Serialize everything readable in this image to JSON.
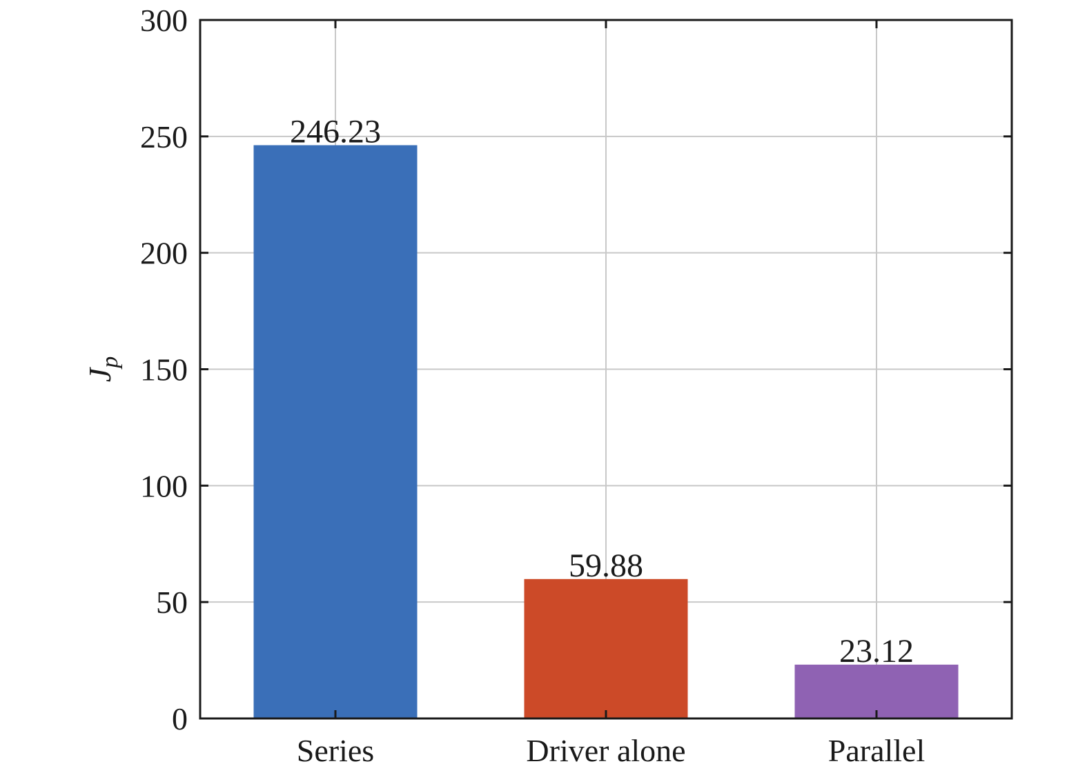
{
  "chart_data": {
    "type": "bar",
    "categories": [
      "Series",
      "Driver alone",
      "Parallel"
    ],
    "values": [
      246.23,
      59.88,
      23.12
    ],
    "data_labels": [
      "246.23",
      "59.88",
      "23.12"
    ],
    "colors": [
      "#3a6fb8",
      "#cc4a28",
      "#8f62b3"
    ],
    "title": "",
    "xlabel": "",
    "ylabel": "J",
    "ylabel_subscript": "p",
    "ylim": [
      0,
      300
    ],
    "yticks": [
      0,
      50,
      100,
      150,
      200,
      250,
      300
    ],
    "ytick_labels": [
      "0",
      "50",
      "100",
      "150",
      "200",
      "250",
      "300"
    ],
    "grid": true
  }
}
